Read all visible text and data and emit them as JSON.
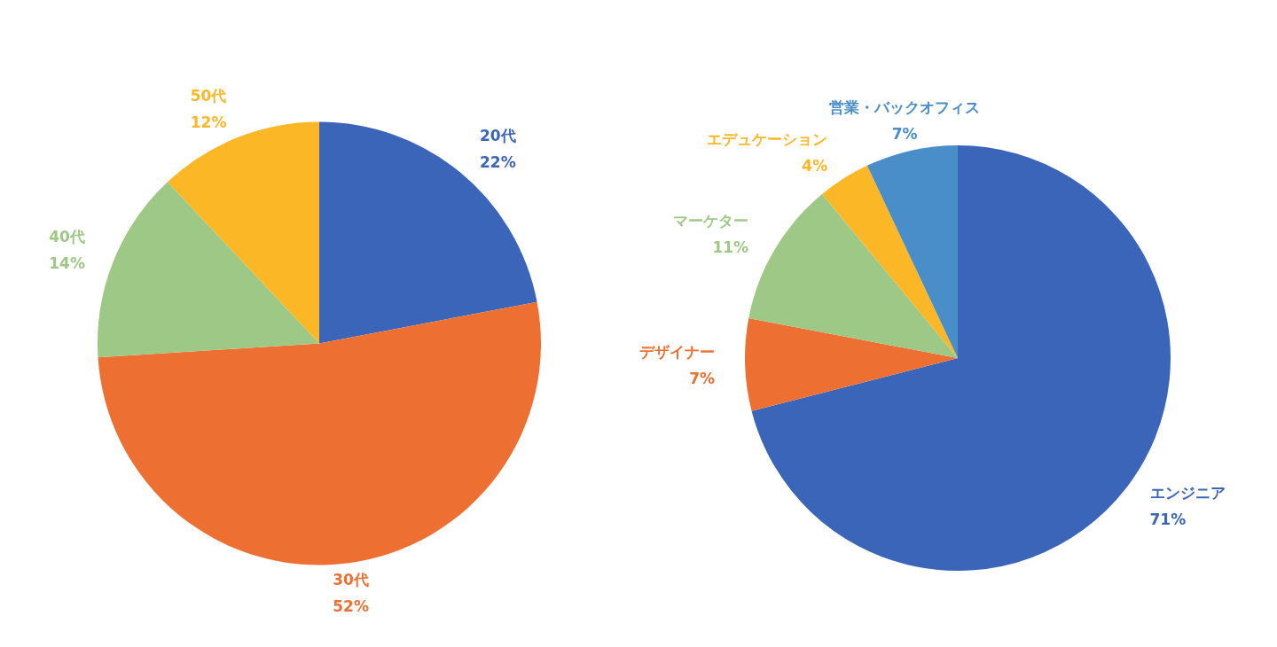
{
  "chart_data": [
    {
      "type": "pie",
      "categories": [
        "20代",
        "30代",
        "40代",
        "50代"
      ],
      "values": [
        22,
        52,
        14,
        12
      ],
      "value_labels": [
        "22%",
        "52%",
        "14%",
        "12%"
      ],
      "colors": [
        "#3a65b8",
        "#ed7032",
        "#9dc885",
        "#fbb726"
      ],
      "legend": false
    },
    {
      "type": "pie",
      "categories": [
        "エンジニア",
        "デザイナー",
        "マーケター",
        "エデュケーション",
        "営業・バックオフィス"
      ],
      "values": [
        71,
        7,
        11,
        4,
        7
      ],
      "value_labels": [
        "71%",
        "7%",
        "11%",
        "4%",
        "7%"
      ],
      "colors": [
        "#3a65b8",
        "#ed7032",
        "#9dc885",
        "#fbb726",
        "#4a8ec9"
      ],
      "legend": false
    }
  ]
}
